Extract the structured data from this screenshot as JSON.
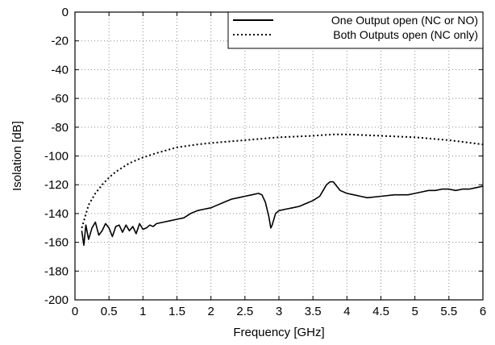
{
  "chart_data": {
    "type": "line",
    "title": "",
    "xlabel": "Frequency [GHz]",
    "ylabel": "Isolation [dB]",
    "xlim": [
      0,
      6
    ],
    "ylim": [
      -200,
      0
    ],
    "xticks": [
      0,
      0.5,
      1,
      1.5,
      2,
      2.5,
      3,
      3.5,
      4,
      4.5,
      5,
      5.5,
      6
    ],
    "xtick_labels": [
      "0",
      "0.5",
      "1",
      "1.5",
      "2",
      "2.5",
      "3",
      "3.5",
      "4",
      "4.5",
      "5",
      "5.5",
      "6"
    ],
    "yticks": [
      0,
      -20,
      -40,
      -60,
      -80,
      -100,
      -120,
      -140,
      -160,
      -180,
      -200
    ],
    "ytick_labels": [
      "0",
      "-20",
      "-40",
      "-60",
      "-80",
      "-100",
      "-120",
      "-140",
      "-160",
      "-180",
      "-200"
    ],
    "grid": true,
    "legend_position": "top-right",
    "series": [
      {
        "name": "One Output open (NC or NO)",
        "style": "solid",
        "color": "#000000",
        "points": [
          [
            0.1,
            -152
          ],
          [
            0.13,
            -162
          ],
          [
            0.16,
            -148
          ],
          [
            0.2,
            -158
          ],
          [
            0.25,
            -150
          ],
          [
            0.3,
            -146
          ],
          [
            0.35,
            -155
          ],
          [
            0.4,
            -152
          ],
          [
            0.45,
            -147
          ],
          [
            0.5,
            -150
          ],
          [
            0.55,
            -156
          ],
          [
            0.6,
            -149
          ],
          [
            0.65,
            -148
          ],
          [
            0.7,
            -153
          ],
          [
            0.75,
            -148
          ],
          [
            0.8,
            -152
          ],
          [
            0.85,
            -149
          ],
          [
            0.9,
            -154
          ],
          [
            0.95,
            -147
          ],
          [
            1.0,
            -151
          ],
          [
            1.05,
            -150
          ],
          [
            1.1,
            -148
          ],
          [
            1.15,
            -149
          ],
          [
            1.2,
            -147
          ],
          [
            1.3,
            -146
          ],
          [
            1.4,
            -145
          ],
          [
            1.5,
            -144
          ],
          [
            1.6,
            -143
          ],
          [
            1.7,
            -140
          ],
          [
            1.8,
            -138
          ],
          [
            1.9,
            -137
          ],
          [
            2.0,
            -136
          ],
          [
            2.1,
            -134
          ],
          [
            2.2,
            -132
          ],
          [
            2.3,
            -130
          ],
          [
            2.4,
            -129
          ],
          [
            2.5,
            -128
          ],
          [
            2.6,
            -127
          ],
          [
            2.7,
            -126
          ],
          [
            2.75,
            -127
          ],
          [
            2.8,
            -132
          ],
          [
            2.85,
            -142
          ],
          [
            2.88,
            -150
          ],
          [
            2.9,
            -148
          ],
          [
            2.95,
            -140
          ],
          [
            3.0,
            -138
          ],
          [
            3.1,
            -137
          ],
          [
            3.2,
            -136
          ],
          [
            3.3,
            -135
          ],
          [
            3.4,
            -133
          ],
          [
            3.5,
            -131
          ],
          [
            3.6,
            -128
          ],
          [
            3.65,
            -124
          ],
          [
            3.7,
            -120
          ],
          [
            3.75,
            -118
          ],
          [
            3.8,
            -118
          ],
          [
            3.85,
            -121
          ],
          [
            3.9,
            -124
          ],
          [
            4.0,
            -126
          ],
          [
            4.1,
            -127
          ],
          [
            4.2,
            -128
          ],
          [
            4.3,
            -129
          ],
          [
            4.5,
            -128
          ],
          [
            4.7,
            -127
          ],
          [
            4.9,
            -127
          ],
          [
            5.0,
            -126
          ],
          [
            5.1,
            -125
          ],
          [
            5.2,
            -124
          ],
          [
            5.3,
            -124
          ],
          [
            5.4,
            -123
          ],
          [
            5.5,
            -123
          ],
          [
            5.6,
            -124
          ],
          [
            5.7,
            -123
          ],
          [
            5.8,
            -123
          ],
          [
            5.9,
            -122
          ],
          [
            6.0,
            -121
          ]
        ]
      },
      {
        "name": "Both Outputs open (NC only)",
        "style": "dotted",
        "color": "#000000",
        "points": [
          [
            0.1,
            -150
          ],
          [
            0.15,
            -142
          ],
          [
            0.2,
            -134
          ],
          [
            0.3,
            -126
          ],
          [
            0.4,
            -120
          ],
          [
            0.5,
            -115
          ],
          [
            0.6,
            -111
          ],
          [
            0.7,
            -108
          ],
          [
            0.8,
            -105
          ],
          [
            1.0,
            -101
          ],
          [
            1.2,
            -98
          ],
          [
            1.5,
            -94
          ],
          [
            1.8,
            -92
          ],
          [
            2.0,
            -91
          ],
          [
            2.5,
            -89
          ],
          [
            3.0,
            -87
          ],
          [
            3.5,
            -86
          ],
          [
            3.8,
            -85
          ],
          [
            4.0,
            -85
          ],
          [
            4.5,
            -86
          ],
          [
            5.0,
            -87
          ],
          [
            5.5,
            -89
          ],
          [
            6.0,
            -92
          ]
        ]
      }
    ]
  }
}
